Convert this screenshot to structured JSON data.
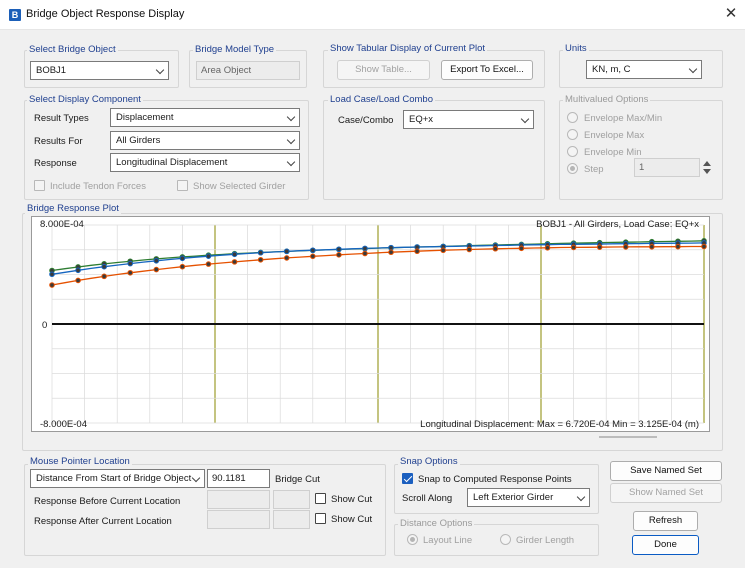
{
  "window": {
    "icon_letter": "B",
    "title": "Bridge Object Response Display"
  },
  "select_bridge": {
    "label": "Select Bridge Object",
    "value": "BOBJ1"
  },
  "model_type": {
    "label": "Bridge Model Type",
    "value": "Area Object"
  },
  "tabular": {
    "label": "Show Tabular Display of Current Plot",
    "show_table": "Show Table...",
    "export_excel": "Export To Excel..."
  },
  "units": {
    "label": "Units",
    "value": "KN, m, C"
  },
  "display_component": {
    "label": "Select Display Component",
    "result_types_label": "Result Types",
    "result_types_value": "Displacement",
    "results_for_label": "Results For",
    "results_for_value": "All Girders",
    "response_label": "Response",
    "response_value": "Longitudinal Displacement",
    "include_tendon": "Include Tendon Forces",
    "show_selected_girder": "Show Selected Girder"
  },
  "load_case": {
    "label": "Load Case/Load Combo",
    "case_label": "Case/Combo",
    "case_value": "EQ+x"
  },
  "multivalued": {
    "label": "Multivalued Options",
    "options": [
      "Envelope Max/Min",
      "Envelope Max",
      "Envelope Min"
    ],
    "step_label": "Step",
    "step_value": "1"
  },
  "plot": {
    "label": "Bridge Response Plot",
    "header": "BOBJ1 - All Girders,  Load Case: EQ+x",
    "y_top": "8.000E-04",
    "y_zero": "0",
    "y_bottom": "-8.000E-04",
    "footer": "Longitudinal Displacement:  Max = 6.720E-04    Min = 3.125E-04  (m)"
  },
  "chart_data": {
    "type": "line",
    "title": "BOBJ1 - All Girders,  Load Case: EQ+x",
    "ylabel": "Longitudinal Displacement (m)",
    "ylim": [
      -0.0008,
      0.0008
    ],
    "y_ticks": [
      "8.000E-04",
      "0",
      "-8.000E-04"
    ],
    "x": [
      0,
      1,
      2,
      3,
      4,
      5,
      6,
      7,
      8,
      9,
      10,
      11,
      12,
      13,
      14,
      15,
      16,
      17,
      18,
      19,
      20,
      21,
      22,
      23,
      24,
      25,
      26,
      27,
      28,
      29,
      30,
      31,
      32,
      33,
      34,
      35,
      36,
      37,
      38,
      39,
      40,
      41,
      42,
      43,
      44,
      45,
      46,
      47,
      48,
      49,
      50
    ],
    "series": [
      {
        "color": "#2e7d32",
        "values": [
          0.000432,
          0.000447,
          0.000461,
          0.000474,
          0.000486,
          0.000497,
          0.000507,
          0.000517,
          0.000526,
          0.000534,
          0.000542,
          0.000549,
          0.000556,
          0.000562,
          0.000568,
          0.000573,
          0.000578,
          0.000583,
          0.000587,
          0.000591,
          0.000595,
          0.000599,
          0.000603,
          0.000606,
          0.000609,
          0.000613,
          0.000616,
          0.000619,
          0.000622,
          0.000624,
          0.000627,
          0.00063,
          0.000633,
          0.000636,
          0.000638,
          0.000641,
          0.000643,
          0.000646,
          0.000648,
          0.000651,
          0.000653,
          0.000655,
          0.000657,
          0.000659,
          0.000661,
          0.000663,
          0.000665,
          0.000667,
          0.000668,
          0.00067,
          0.000672
        ]
      },
      {
        "color": "#1565c0",
        "values": [
          0.000402,
          0.000418,
          0.000434,
          0.000449,
          0.000463,
          0.000476,
          0.000488,
          0.0005,
          0.000511,
          0.000521,
          0.000531,
          0.00054,
          0.000548,
          0.000556,
          0.000563,
          0.00057,
          0.000576,
          0.000582,
          0.000587,
          0.000592,
          0.000596,
          0.0006,
          0.000604,
          0.000608,
          0.000611,
          0.000614,
          0.000617,
          0.00062,
          0.000622,
          0.000624,
          0.000626,
          0.000628,
          0.00063,
          0.000632,
          0.000634,
          0.000636,
          0.000638,
          0.00064,
          0.000641,
          0.000643,
          0.000644,
          0.000645,
          0.000646,
          0.000648,
          0.000649,
          0.00065,
          0.000651,
          0.000652,
          0.000653,
          0.000654,
          0.000655
        ]
      },
      {
        "color": "#e65100",
        "values": [
          0.000315,
          0.000334,
          0.000352,
          0.000369,
          0.000385,
          0.0004,
          0.000414,
          0.000427,
          0.00044,
          0.000452,
          0.000463,
          0.000474,
          0.000484,
          0.000493,
          0.000502,
          0.000511,
          0.000519,
          0.000527,
          0.000534,
          0.000541,
          0.000547,
          0.000553,
          0.000559,
          0.000565,
          0.00057,
          0.000575,
          0.00058,
          0.000584,
          0.000588,
          0.000592,
          0.000596,
          0.000599,
          0.000602,
          0.000605,
          0.000608,
          0.00061,
          0.000612,
          0.000614,
          0.000616,
          0.000618,
          0.000619,
          0.00062,
          0.000621,
          0.000622,
          0.000623,
          0.000624,
          0.000624,
          0.000625,
          0.000625,
          0.000626,
          0.000626
        ]
      }
    ],
    "grid": true
  },
  "pointer": {
    "label": "Mouse Pointer Location",
    "mode_value": "Distance From Start of Bridge Object",
    "distance_value": "90.1181",
    "bridge_cut": "Bridge Cut",
    "before_label": "Response Before Current Location",
    "after_label": "Response After Current Location",
    "show_cut": "Show Cut"
  },
  "snap": {
    "label": "Snap Options",
    "snap_label": "Snap to Computed Response Points",
    "scroll_label": "Scroll Along",
    "scroll_value": "Left Exterior Girder"
  },
  "distance_options": {
    "label": "Distance Options",
    "layout_line": "Layout Line",
    "girder_length": "Girder Length"
  },
  "buttons": {
    "save_named": "Save Named Set",
    "show_named": "Show Named Set",
    "refresh": "Refresh",
    "done": "Done"
  }
}
